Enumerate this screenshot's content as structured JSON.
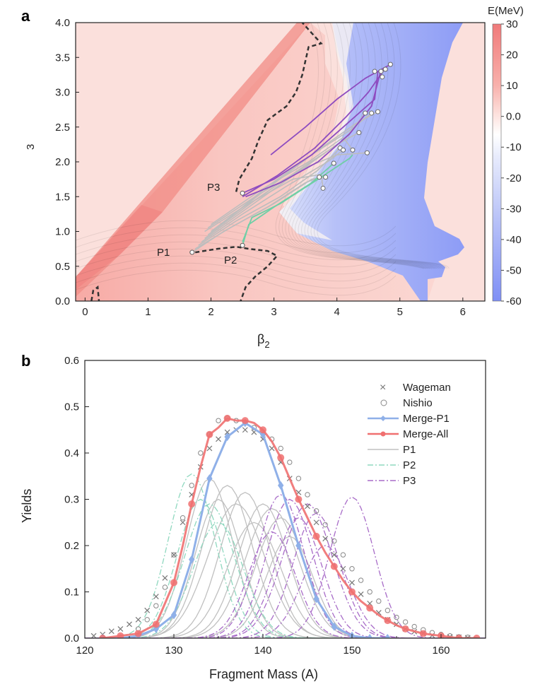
{
  "colors": {
    "positive": "#f07a7a",
    "neutral": "#ffffff",
    "negative": "#7f8ff5",
    "merge_p1": "#8fb0e8",
    "merge_all": "#f07070",
    "p1": "#c0c0c0",
    "p2": "#8fd8bf",
    "p3": "#a86cc8",
    "traj_p3": "#8e4cc0",
    "traj_p2": "#6fcfa6",
    "traj_p1": "#bdbdbd",
    "barrier": "#333333",
    "wageman": "#777777",
    "nishio": "#888888"
  },
  "chart_data": [
    {
      "panel": "a",
      "type": "heatmap",
      "xlabel_main": "β",
      "xlabel_sub": "2",
      "ylabel": "3",
      "colorbar_title": "E(MeV)",
      "colorbar_ticks": [
        "30",
        "20",
        "10",
        "0.0",
        "-10",
        "-20",
        "-30",
        "-40",
        "-50",
        "-60"
      ],
      "colorbar_values": [
        30,
        20,
        10,
        0,
        -10,
        -20,
        -30,
        -40,
        -50,
        -60
      ],
      "x_ticks": [
        "0",
        "1",
        "2",
        "3",
        "4",
        "5",
        "6"
      ],
      "y_ticks": [
        "0.0",
        "0.5",
        "1.0",
        "1.5",
        "2.0",
        "2.5",
        "3.0",
        "3.5",
        "4.0"
      ],
      "xlim": [
        -0.15,
        6.35
      ],
      "ylim": [
        0,
        4.0
      ],
      "points": [
        {
          "label": "P1",
          "x": 1.7,
          "y": 0.7
        },
        {
          "label": "P2",
          "x": 2.5,
          "y": 0.8
        },
        {
          "label": "P3",
          "x": 2.5,
          "y": 1.55
        }
      ],
      "barrier": [
        [
          [
            0.1,
            0.0
          ],
          [
            0.13,
            0.15
          ],
          [
            0.2,
            0.2
          ],
          [
            0.22,
            0.0
          ]
        ],
        [
          [
            1.75,
            0.7
          ],
          [
            2.1,
            0.75
          ],
          [
            2.4,
            0.78
          ],
          [
            2.6,
            0.75
          ],
          [
            2.9,
            0.72
          ],
          [
            3.05,
            0.65
          ],
          [
            2.9,
            0.5
          ],
          [
            2.7,
            0.35
          ],
          [
            2.55,
            0.2
          ],
          [
            2.47,
            0.0
          ]
        ],
        [
          [
            2.4,
            1.57
          ],
          [
            2.45,
            1.75
          ],
          [
            2.65,
            2.05
          ],
          [
            2.75,
            2.3
          ],
          [
            2.9,
            2.6
          ],
          [
            3.2,
            2.8
          ],
          [
            3.35,
            3.0
          ],
          [
            3.45,
            3.25
          ],
          [
            3.5,
            3.45
          ],
          [
            3.55,
            3.65
          ],
          [
            3.75,
            3.7
          ],
          [
            3.6,
            3.85
          ],
          [
            3.45,
            4.0
          ]
        ]
      ],
      "trajectories": {
        "p3": [
          [
            [
              2.5,
              1.55
            ],
            [
              3.0,
              1.75
            ],
            [
              3.6,
              2.1
            ],
            [
              4.1,
              2.5
            ],
            [
              4.6,
              2.9
            ],
            [
              4.65,
              3.3
            ]
          ],
          [
            [
              2.55,
              1.5
            ],
            [
              3.1,
              1.7
            ],
            [
              3.7,
              2.0
            ],
            [
              4.2,
              2.4
            ],
            [
              4.55,
              2.8
            ],
            [
              4.7,
              3.32
            ]
          ],
          [
            [
              2.5,
              1.5
            ],
            [
              3.05,
              1.8
            ],
            [
              3.65,
              2.2
            ],
            [
              4.15,
              2.65
            ],
            [
              4.5,
              3.0
            ],
            [
              4.77,
              3.35
            ]
          ],
          [
            [
              2.95,
              2.1
            ],
            [
              3.5,
              2.5
            ],
            [
              4.0,
              2.9
            ],
            [
              4.45,
              3.2
            ],
            [
              4.85,
              3.4
            ]
          ]
        ],
        "p2": [
          [
            [
              2.5,
              0.8
            ],
            [
              2.6,
              1.1
            ],
            [
              3.0,
              1.35
            ],
            [
              3.6,
              1.7
            ],
            [
              3.95,
              1.98
            ]
          ],
          [
            [
              2.5,
              0.85
            ],
            [
              2.65,
              1.2
            ],
            [
              3.1,
              1.4
            ],
            [
              3.7,
              1.75
            ],
            [
              4.2,
              2.05
            ],
            [
              4.25,
              2.1
            ]
          ]
        ],
        "p1": [
          [
            [
              1.7,
              0.7
            ],
            [
              2.2,
              1.0
            ],
            [
              2.9,
              1.35
            ],
            [
              3.5,
              1.7
            ],
            [
              3.72,
              1.78
            ]
          ],
          [
            [
              1.75,
              0.75
            ],
            [
              2.3,
              1.05
            ],
            [
              3.0,
              1.4
            ],
            [
              3.6,
              1.75
            ],
            [
              3.82,
              1.78
            ]
          ],
          [
            [
              1.8,
              0.8
            ],
            [
              2.4,
              1.15
            ],
            [
              3.1,
              1.5
            ],
            [
              3.7,
              1.88
            ],
            [
              4.05,
              2.2
            ]
          ],
          [
            [
              1.85,
              0.85
            ],
            [
              2.5,
              1.25
            ],
            [
              3.2,
              1.65
            ],
            [
              3.85,
              2.0
            ],
            [
              4.1,
              2.17
            ]
          ],
          [
            [
              1.9,
              0.9
            ],
            [
              2.6,
              1.35
            ],
            [
              3.3,
              1.8
            ],
            [
              4.0,
              2.25
            ],
            [
              4.35,
              2.42
            ]
          ],
          [
            [
              1.95,
              0.95
            ],
            [
              2.7,
              1.45
            ],
            [
              3.5,
              1.95
            ],
            [
              4.1,
              2.3
            ],
            [
              4.45,
              2.7
            ]
          ],
          [
            [
              2.0,
              1.0
            ],
            [
              2.8,
              1.55
            ],
            [
              3.6,
              2.1
            ],
            [
              4.2,
              2.45
            ],
            [
              4.55,
              2.7
            ]
          ],
          [
            [
              2.1,
              1.05
            ],
            [
              2.9,
              1.65
            ],
            [
              3.75,
              2.2
            ],
            [
              4.3,
              2.55
            ],
            [
              4.65,
              2.72
            ]
          ],
          [
            [
              2.0,
              1.1
            ],
            [
              2.8,
              1.6
            ],
            [
              3.55,
              2.0
            ],
            [
              4.1,
              2.35
            ],
            [
              4.25,
              2.17
            ]
          ],
          [
            [
              1.95,
              1.05
            ],
            [
              2.7,
              1.5
            ],
            [
              3.45,
              1.9
            ],
            [
              4.0,
              2.1
            ],
            [
              4.48,
              2.13
            ]
          ],
          [
            [
              1.9,
              1.0
            ],
            [
              2.6,
              1.4
            ],
            [
              3.3,
              1.75
            ],
            [
              3.75,
              1.82
            ],
            [
              3.78,
              1.62
            ]
          ]
        ]
      },
      "endpoints": [
        [
          3.72,
          1.78
        ],
        [
          3.82,
          1.78
        ],
        [
          3.78,
          1.62
        ],
        [
          3.95,
          1.98
        ],
        [
          4.05,
          2.2
        ],
        [
          4.1,
          2.17
        ],
        [
          4.25,
          2.17
        ],
        [
          4.48,
          2.13
        ],
        [
          4.35,
          2.42
        ],
        [
          4.45,
          2.7
        ],
        [
          4.55,
          2.7
        ],
        [
          4.65,
          2.72
        ],
        [
          4.6,
          3.3
        ],
        [
          4.7,
          3.3
        ],
        [
          4.77,
          3.33
        ],
        [
          4.85,
          3.4
        ],
        [
          4.72,
          3.22
        ]
      ],
      "start_points": [
        [
          1.7,
          0.7
        ],
        [
          2.5,
          0.8
        ],
        [
          2.5,
          1.55
        ]
      ]
    },
    {
      "panel": "b",
      "type": "line",
      "xlabel": "Fragment Mass (A)",
      "ylabel": "Yields",
      "xlim": [
        120,
        165
      ],
      "ylim": [
        0,
        0.6
      ],
      "x_ticks": [
        "120",
        "130",
        "140",
        "150",
        "160"
      ],
      "y_ticks": [
        "0.0",
        "0.1",
        "0.2",
        "0.3",
        "0.4",
        "0.5",
        "0.6"
      ],
      "legend_position": "top-right",
      "legend": [
        "Wageman",
        "Nishio",
        "Merge-P1",
        "Merge-All",
        "P1",
        "P2",
        "P3"
      ],
      "series": [
        {
          "name": "Wageman",
          "style": "x",
          "x": [
            121,
            122,
            123,
            124,
            125,
            126,
            127,
            128,
            129,
            130,
            131,
            132,
            133,
            134,
            135,
            136,
            137,
            138,
            139,
            140,
            141,
            142,
            143,
            144,
            145,
            146,
            147,
            148,
            149,
            150,
            151,
            152,
            153,
            154,
            155,
            156,
            157,
            158,
            159,
            160,
            161,
            162,
            163
          ],
          "y": [
            0.005,
            0.008,
            0.015,
            0.02,
            0.03,
            0.04,
            0.06,
            0.09,
            0.13,
            0.18,
            0.25,
            0.31,
            0.37,
            0.41,
            0.43,
            0.445,
            0.45,
            0.45,
            0.445,
            0.43,
            0.41,
            0.38,
            0.345,
            0.315,
            0.285,
            0.25,
            0.215,
            0.18,
            0.15,
            0.12,
            0.095,
            0.075,
            0.055,
            0.04,
            0.03,
            0.02,
            0.014,
            0.01,
            0.006,
            0.004,
            0.003,
            0.002,
            0.001
          ]
        },
        {
          "name": "Nishio",
          "style": "o",
          "x": [
            126,
            127,
            128,
            129,
            130,
            131,
            132,
            133,
            134,
            135,
            136,
            137,
            138,
            139,
            140,
            141,
            142,
            143,
            144,
            145,
            146,
            147,
            148,
            149,
            150,
            151,
            152,
            153,
            154,
            155,
            156,
            157,
            158,
            159,
            160,
            161,
            162,
            163
          ],
          "y": [
            0.02,
            0.04,
            0.07,
            0.11,
            0.18,
            0.26,
            0.33,
            0.4,
            0.44,
            0.47,
            0.475,
            0.47,
            0.465,
            0.455,
            0.445,
            0.43,
            0.41,
            0.38,
            0.345,
            0.31,
            0.275,
            0.245,
            0.21,
            0.18,
            0.15,
            0.125,
            0.1,
            0.08,
            0.06,
            0.045,
            0.035,
            0.025,
            0.018,
            0.012,
            0.008,
            0.005,
            0.003,
            0.002
          ]
        },
        {
          "name": "Merge-P1",
          "style": "diamond",
          "x": [
            122,
            124,
            126,
            128,
            130,
            132,
            134,
            136,
            138,
            140,
            142,
            144,
            146,
            148,
            150,
            152,
            154
          ],
          "y": [
            0.0,
            0.0,
            0.005,
            0.02,
            0.05,
            0.17,
            0.345,
            0.435,
            0.465,
            0.44,
            0.33,
            0.2,
            0.085,
            0.025,
            0.005,
            0.0,
            0.0
          ]
        },
        {
          "name": "Merge-All",
          "style": "circle",
          "x": [
            122,
            124,
            126,
            128,
            130,
            131,
            132,
            133,
            134,
            135,
            136,
            137,
            138,
            139,
            140,
            141,
            142,
            143,
            144,
            145,
            146,
            147,
            148,
            149,
            150,
            151,
            152,
            153,
            154,
            155,
            156,
            158,
            160,
            162,
            164
          ],
          "y": [
            0.0,
            0.005,
            0.01,
            0.03,
            0.12,
            0.2,
            0.29,
            0.37,
            0.44,
            0.455,
            0.475,
            0.47,
            0.47,
            0.465,
            0.45,
            0.425,
            0.39,
            0.345,
            0.3,
            0.26,
            0.22,
            0.185,
            0.155,
            0.125,
            0.1,
            0.08,
            0.065,
            0.05,
            0.038,
            0.028,
            0.02,
            0.01,
            0.005,
            0.0,
            0.0
          ]
        },
        {
          "name": "P1",
          "style": "solid",
          "curves": [
            {
              "center": 134,
              "peak": 0.345,
              "width": 2.6
            },
            {
              "center": 136,
              "peak": 0.33,
              "width": 2.8
            },
            {
              "center": 138,
              "peak": 0.315,
              "width": 2.8
            },
            {
              "center": 140,
              "peak": 0.29,
              "width": 2.8
            },
            {
              "center": 141,
              "peak": 0.28,
              "width": 3.0
            },
            {
              "center": 139,
              "peak": 0.25,
              "width": 3.0
            },
            {
              "center": 137,
              "peak": 0.29,
              "width": 3.2
            },
            {
              "center": 142,
              "peak": 0.26,
              "width": 2.8
            },
            {
              "center": 135,
              "peak": 0.3,
              "width": 2.6
            },
            {
              "center": 143,
              "peak": 0.22,
              "width": 2.6
            }
          ]
        },
        {
          "name": "P2",
          "style": "dashdot",
          "curves": [
            {
              "center": 132,
              "peak": 0.355,
              "width": 2.6
            },
            {
              "center": 133,
              "peak": 0.3,
              "width": 2.6
            },
            {
              "center": 134,
              "peak": 0.29,
              "width": 2.8
            },
            {
              "center": 135,
              "peak": 0.25,
              "width": 2.8
            }
          ]
        },
        {
          "name": "P3",
          "style": "dashdot",
          "curves": [
            {
              "center": 142,
              "peak": 0.31,
              "width": 2.6
            },
            {
              "center": 143,
              "peak": 0.3,
              "width": 2.6
            },
            {
              "center": 144,
              "peak": 0.26,
              "width": 2.6
            },
            {
              "center": 145,
              "peak": 0.29,
              "width": 2.8
            },
            {
              "center": 146,
              "peak": 0.27,
              "width": 2.6
            },
            {
              "center": 147,
              "peak": 0.2,
              "width": 2.6
            },
            {
              "center": 150,
              "peak": 0.305,
              "width": 2.5
            },
            {
              "center": 141,
              "peak": 0.23,
              "width": 2.6
            }
          ]
        }
      ],
      "legend_text": {
        "wageman": "Wageman",
        "nishio": "Nishio",
        "merge_p1": "Merge-P1",
        "merge_all": "Merge-All",
        "p1": "P1",
        "p2": "P2",
        "p3": "P3"
      }
    }
  ],
  "text": {
    "panel_a": "a",
    "panel_b": "b",
    "p1": "P1",
    "p2": "P2",
    "p3": "P3"
  }
}
